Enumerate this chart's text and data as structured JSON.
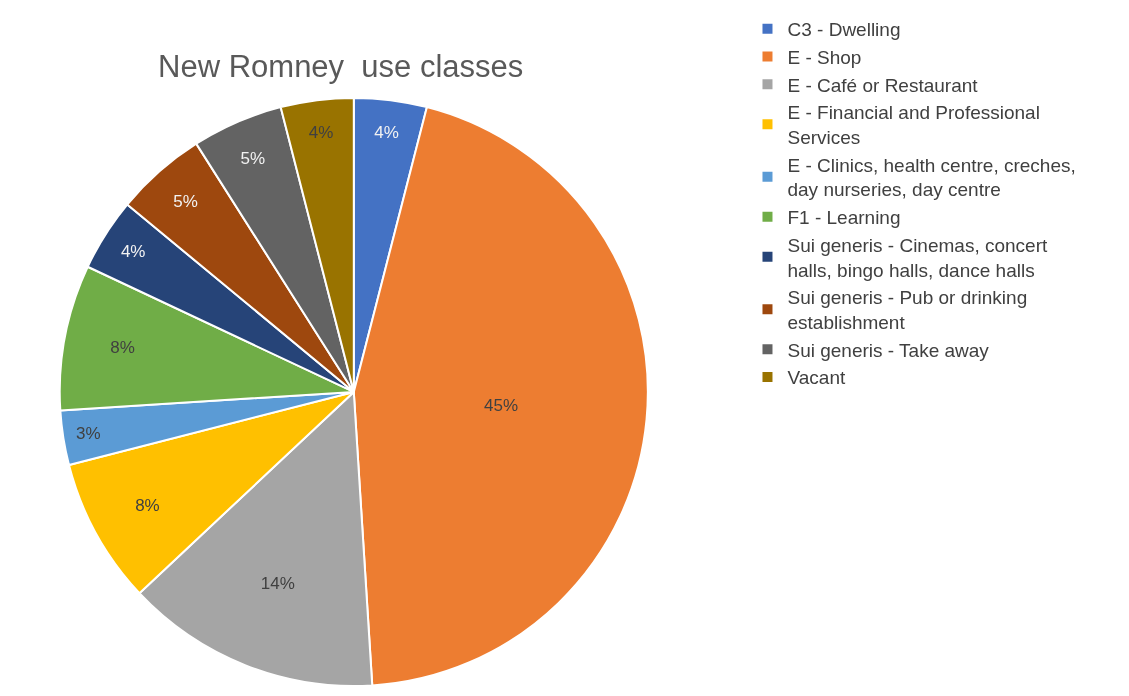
{
  "chart_data": {
    "type": "pie",
    "title": "New Romney  use classes",
    "categories": [
      "C3 - Dwelling",
      "E - Shop",
      "E - Café or Restaurant",
      "E - Financial and Professional Services",
      "E - Clinics, health centre, creches, day nurseries, day centre",
      "F1 - Learning",
      "Sui generis - Cinemas, concert halls, bingo halls, dance halls",
      "Sui generis - Pub or drinking establishment",
      "Sui generis - Take away",
      "Vacant"
    ],
    "values": [
      4,
      45,
      14,
      8,
      3,
      8,
      4,
      5,
      5,
      4
    ],
    "value_labels": [
      "4%",
      "45%",
      "14%",
      "8%",
      "3%",
      "8%",
      "4%",
      "5%",
      "5%",
      "4%"
    ],
    "colors": [
      "#4472c4",
      "#ed7d31",
      "#a5a5a5",
      "#ffc000",
      "#5b9bd5",
      "#70ad47",
      "#264478",
      "#9e480e",
      "#636363",
      "#997300"
    ],
    "legend": "right"
  }
}
